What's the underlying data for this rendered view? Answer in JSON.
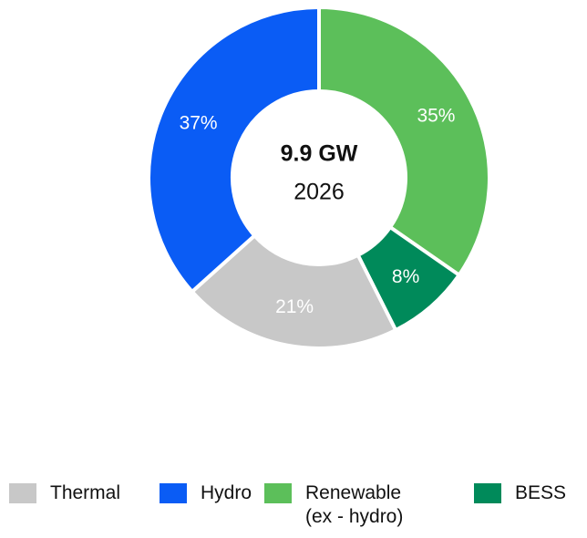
{
  "chart_data": {
    "type": "donut",
    "center_title": "9.9 GW",
    "center_subtitle": "2026",
    "categories": [
      "Thermal",
      "Hydro",
      "Renewable\n(ex - hydro)",
      "BESS"
    ],
    "values": [
      21,
      37,
      35,
      8
    ],
    "value_labels": [
      "21%",
      "37%",
      "35%",
      "8%"
    ],
    "colors": [
      "#c8c8c8",
      "#0a5cf5",
      "#5cbf5a",
      "#008a5a"
    ],
    "legend": "bottom"
  }
}
